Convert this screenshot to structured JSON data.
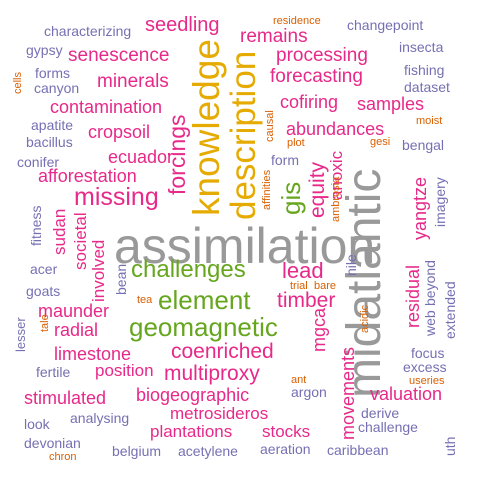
{
  "palette": {
    "gray": "#999999",
    "purple": "#7570b3",
    "magenta": "#e7298a",
    "green": "#66a61e",
    "yellow": "#e6ab02",
    "orange": "#d95f02",
    "background": "#ffffff"
  },
  "words": {
    "assimilation": "assimilation",
    "midatlantic": "midatlantic",
    "knowledge": "knowledge",
    "description": "description",
    "challenges": "challenges",
    "element": "element",
    "geomagnetic": "geomagnetic",
    "missing": "missing",
    "forcings": "forcings",
    "gis": "gis",
    "equity": "equity",
    "coenriched": "coenriched",
    "multiproxy": "multiproxy",
    "lead": "lead",
    "timber": "timber",
    "seedling": "seedling",
    "senescence": "senescence",
    "minerals": "minerals",
    "contamination": "contamination",
    "cropsoil": "cropsoil",
    "ecuador": "ecuador",
    "afforestation": "afforestation",
    "remains": "remains",
    "processing": "processing",
    "forecasting": "forecasting",
    "cofiring": "cofiring",
    "samples": "samples",
    "abundances": "abundances",
    "anoxic": "anoxic",
    "yangtze": "yangtze",
    "residual": "residual",
    "valuation": "valuation",
    "movements": "movements",
    "mgca": "mgca",
    "sudan": "sudan",
    "societal": "societal",
    "involved": "involved",
    "maunder": "maunder",
    "radial": "radial",
    "limestone": "limestone",
    "position": "position",
    "stimulated": "stimulated",
    "biogeographic": "biogeographic",
    "metrosideros": "metrosideros",
    "plantations": "plantations",
    "stocks": "stocks",
    "characterizing": "characterizing",
    "changepoint": "changepoint",
    "gypsy": "gypsy",
    "insecta": "insecta",
    "forms": "forms",
    "canyon": "canyon",
    "fishing": "fishing",
    "dataset": "dataset",
    "apatite": "apatite",
    "bacillus": "bacillus",
    "conifer": "conifer",
    "bengal": "bengal",
    "imagery": "imagery",
    "form": "form",
    "fitness": "fitness",
    "acer": "acer",
    "goats": "goats",
    "bean": "bean",
    "nile": "nile",
    "beyond": "beyond",
    "web": "web",
    "extended": "extended",
    "lesser": "lesser",
    "fertile": "fertile",
    "focus": "focus",
    "excess": "excess",
    "argon": "argon",
    "derive": "derive",
    "challenge": "challenge",
    "look": "look",
    "analysing": "analysing",
    "devonian": "devonian",
    "belgium": "belgium",
    "acetylene": "acetylene",
    "aeration": "aeration",
    "caribbean": "caribbean",
    "uth": "uth",
    "residence": "residence",
    "cells": "cells",
    "causal": "causal",
    "moist": "moist",
    "plot": "plot",
    "gesi": "gesi",
    "affinities": "affinities",
    "ambrosia": "ambrosia",
    "trial": "trial",
    "bare": "bare",
    "tea": "tea",
    "tale": "tale",
    "acidic": "acidic",
    "ant": "ant",
    "useries": "useries",
    "chron": "chron"
  }
}
